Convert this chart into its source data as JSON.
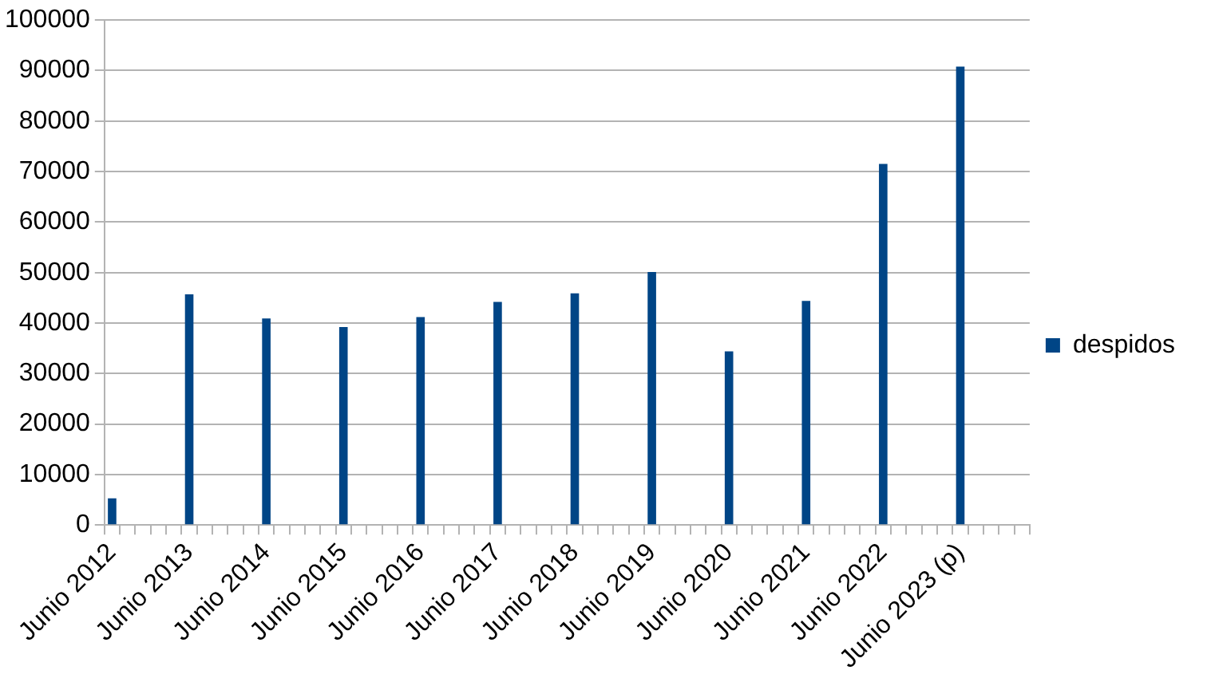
{
  "chart_data": {
    "type": "bar",
    "categories": [
      "Junio 2012",
      null,
      null,
      null,
      null,
      "Junio 2013",
      null,
      null,
      null,
      null,
      "Junio 2014",
      null,
      null,
      null,
      null,
      "Junio 2015",
      null,
      null,
      null,
      null,
      "Junio 2016",
      null,
      null,
      null,
      null,
      "Junio 2017",
      null,
      null,
      null,
      null,
      "Junio 2018",
      null,
      null,
      null,
      null,
      "Junio 2019",
      null,
      null,
      null,
      null,
      "Junio 2020",
      null,
      null,
      null,
      null,
      "Junio 2021",
      null,
      null,
      null,
      null,
      "Junio 2022",
      null,
      null,
      null,
      null,
      "Junio 2023 (p)",
      null,
      null,
      null,
      null
    ],
    "series": [
      {
        "name": "despidos",
        "color": "#004586",
        "values": [
          5300,
          null,
          null,
          null,
          null,
          45700,
          null,
          null,
          null,
          null,
          40900,
          null,
          null,
          null,
          null,
          39200,
          null,
          null,
          null,
          null,
          41200,
          null,
          null,
          null,
          null,
          44200,
          null,
          null,
          null,
          null,
          45900,
          null,
          null,
          null,
          null,
          50100,
          null,
          null,
          null,
          null,
          34400,
          null,
          null,
          null,
          null,
          44400,
          null,
          null,
          null,
          null,
          71500,
          null,
          null,
          null,
          null,
          90800,
          null,
          null,
          null,
          null
        ]
      }
    ],
    "ylim": [
      0,
      100000
    ],
    "yticks": [
      0,
      10000,
      20000,
      30000,
      40000,
      50000,
      60000,
      70000,
      80000,
      90000,
      100000
    ],
    "grid": "y",
    "legend": "right"
  }
}
